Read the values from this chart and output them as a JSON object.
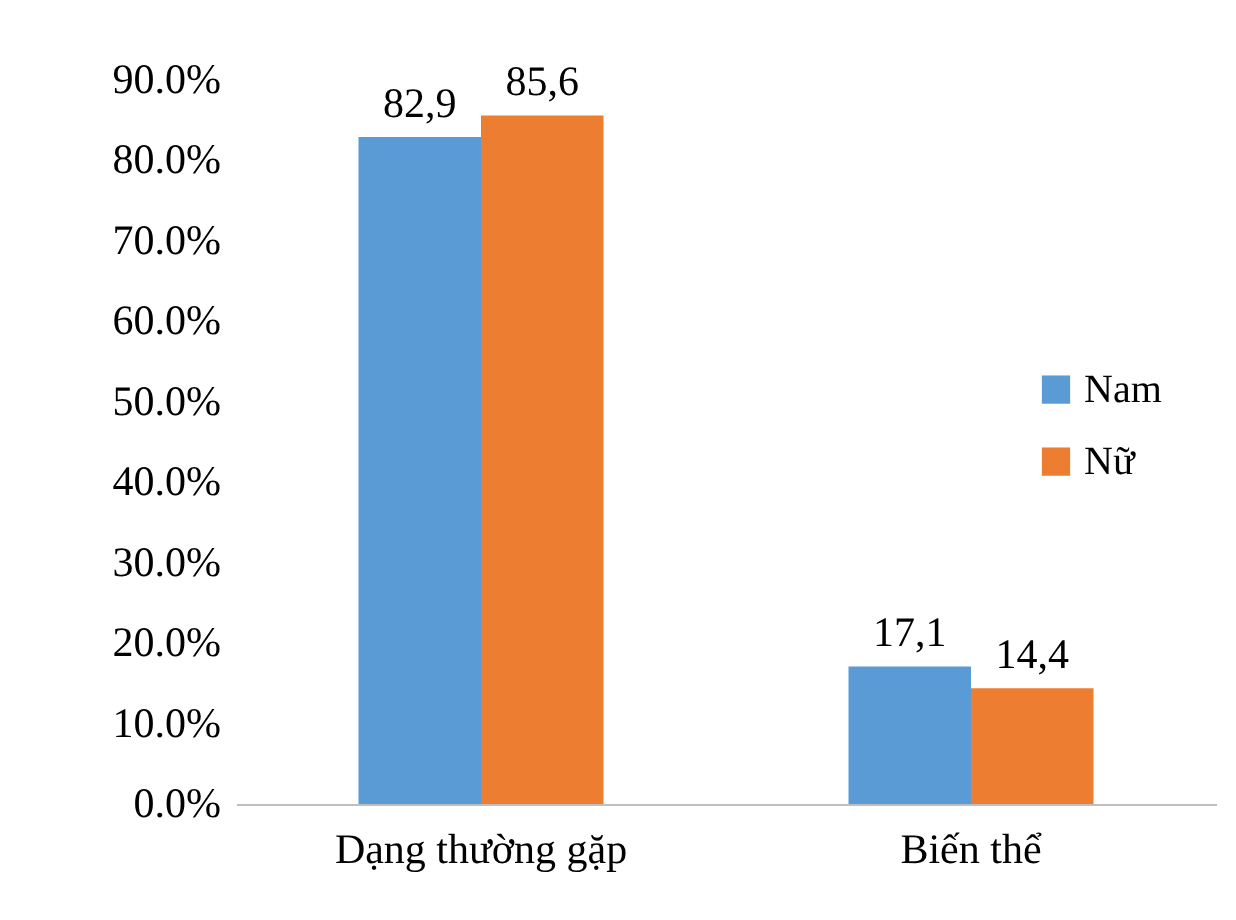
{
  "chart_data": {
    "type": "bar",
    "categories": [
      "Dạng thường gặp",
      "Biến thể"
    ],
    "series": [
      {
        "name": "Nam",
        "color": "#5b9bd5",
        "values": [
          82.9,
          17.1
        ],
        "value_labels": [
          "82,9",
          "17,1"
        ]
      },
      {
        "name": "Nữ",
        "color": "#ed7d31",
        "values": [
          85.6,
          14.4
        ],
        "value_labels": [
          "85,6",
          "14,4"
        ]
      }
    ],
    "ylim": [
      0,
      90
    ],
    "yticks": [
      {
        "value": 0,
        "label": "0.0%"
      },
      {
        "value": 10,
        "label": "10.0%"
      },
      {
        "value": 20,
        "label": "20.0%"
      },
      {
        "value": 30,
        "label": "30.0%"
      },
      {
        "value": 40,
        "label": "40.0%"
      },
      {
        "value": 50,
        "label": "50.0%"
      },
      {
        "value": 60,
        "label": "60.0%"
      },
      {
        "value": 70,
        "label": "70.0%"
      },
      {
        "value": 80,
        "label": "80.0%"
      },
      {
        "value": 90,
        "label": "90.0%"
      }
    ],
    "grid": false,
    "legend": "right"
  }
}
